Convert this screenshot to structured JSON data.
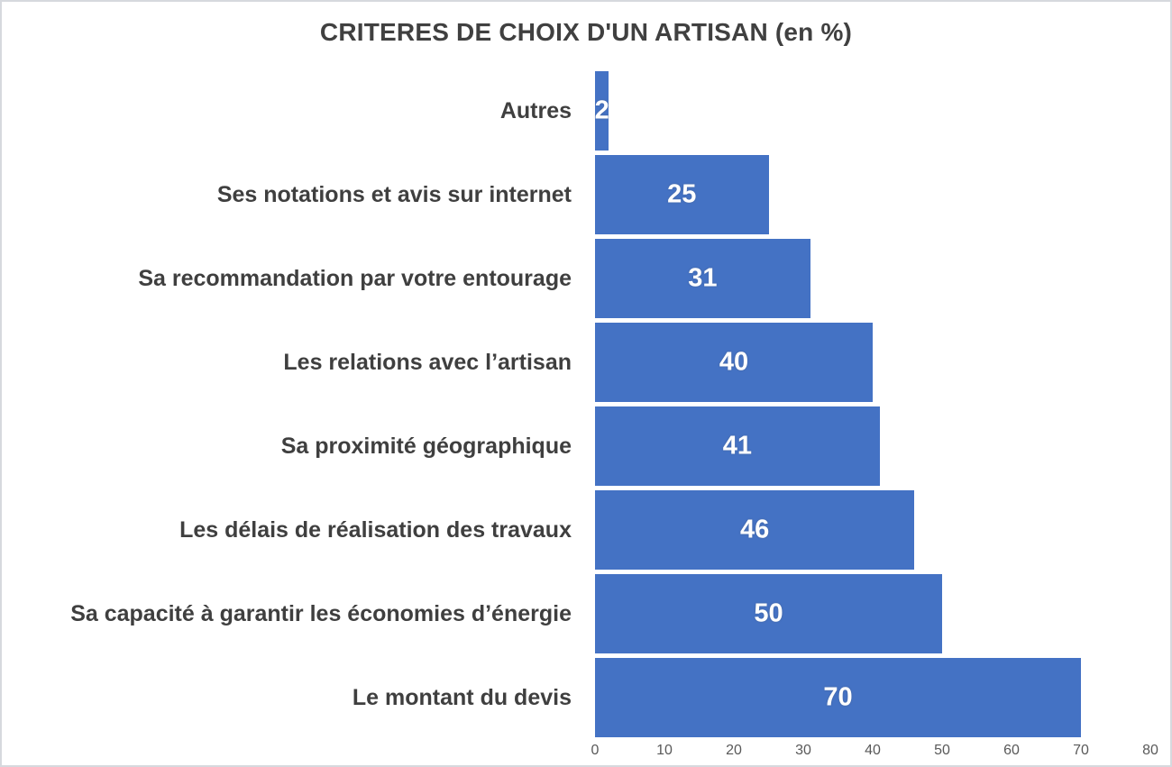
{
  "page": {
    "background": "#ffffff",
    "border_color": "#d6d9de"
  },
  "chart_data": {
    "type": "bar",
    "orientation": "horizontal",
    "title": "CRITERES DE CHOIX D'UN ARTISAN (en %)",
    "categories": [
      "Autres",
      "Ses notations et avis sur internet",
      "Sa recommandation par votre entourage",
      "Les relations avec l’artisan",
      "Sa proximité géographique",
      "Les délais de réalisation des travaux",
      "Sa capacité à garantir les économies d’énergie",
      "Le montant du devis"
    ],
    "values": [
      2,
      25,
      31,
      40,
      41,
      46,
      50,
      70
    ],
    "xlabel": "",
    "ylabel": "",
    "xlim": [
      0,
      80
    ],
    "x_ticks": [
      0,
      10,
      20,
      30,
      40,
      50,
      60,
      70,
      80
    ],
    "gridlines": false,
    "legend": false,
    "bar_color": "#4472C4",
    "value_label_color": "#ffffff",
    "category_label_color": "#3f3f3f",
    "title_color": "#404040",
    "tick_label_color": "#595959"
  }
}
